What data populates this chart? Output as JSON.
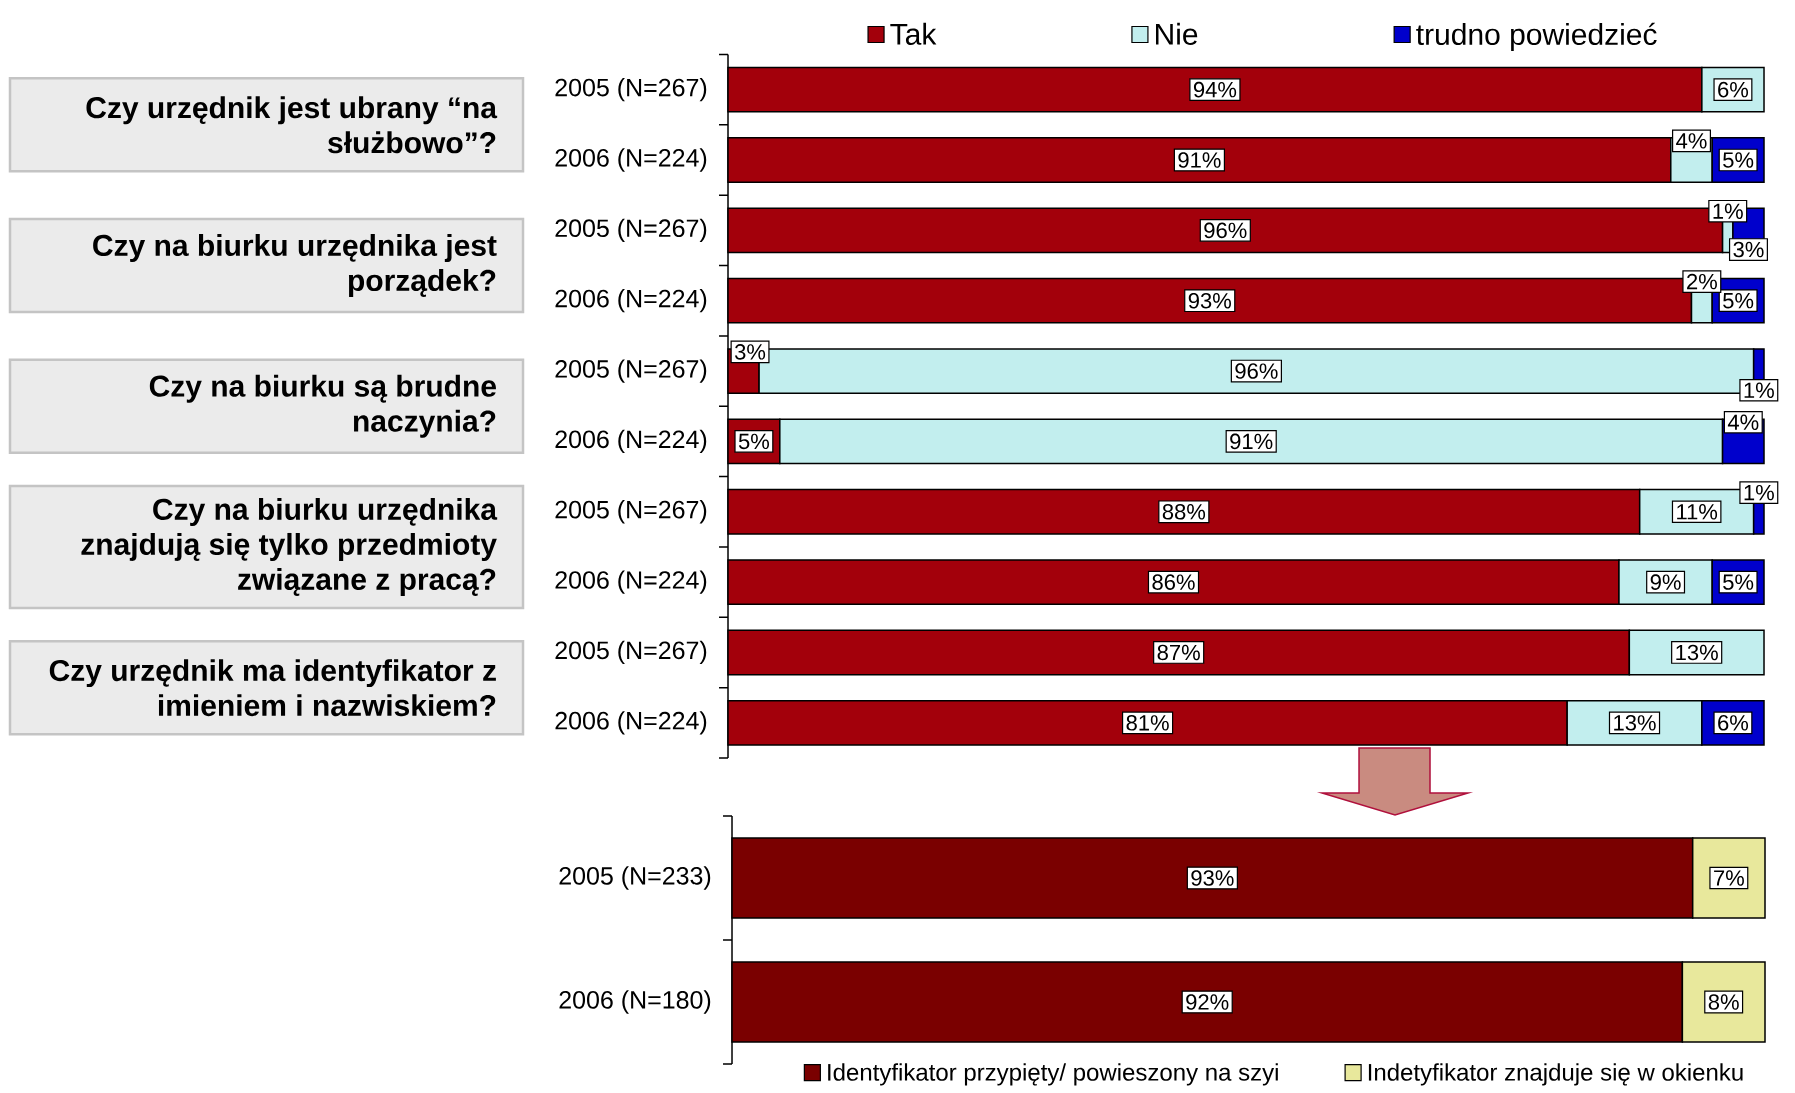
{
  "chart_data": [
    {
      "type": "bar",
      "orientation": "horizontal",
      "stacked": true,
      "legend": "top",
      "categories": [
        "2005 (N=267)",
        "2006 (N=224)",
        "2005 (N=267)",
        "2006 (N=224)",
        "2005 (N=267)",
        "2006 (N=224)",
        "2005 (N=267)",
        "2006 (N=224)",
        "2005 (N=267)",
        "2006 (N=224)"
      ],
      "series": [
        {
          "name": "Tak",
          "color": "#a3000b",
          "values": [
            94,
            91,
            96,
            93,
            3,
            5,
            88,
            86,
            87,
            81
          ],
          "value_labels": [
            "94%",
            "91%",
            "96%",
            "93%",
            "3%",
            "5%",
            "88%",
            "86%",
            "87%",
            "81%"
          ]
        },
        {
          "name": "Nie",
          "color": "#c2eeee",
          "values": [
            6,
            4,
            1,
            2,
            96,
            91,
            11,
            9,
            13,
            13
          ],
          "value_labels": [
            "6%",
            "4%",
            "1%",
            "2%",
            "96%",
            "91%",
            "11%",
            "9%",
            "13%",
            "13%"
          ]
        },
        {
          "name": "trudno powiedzieć",
          "color": "#0000cc",
          "values": [
            null,
            5,
            3,
            5,
            1,
            4,
            1,
            5,
            null,
            6
          ],
          "value_labels": [
            null,
            "5%",
            "3%",
            "5%",
            "1%",
            "4%",
            "1%",
            "5%",
            null,
            "6%"
          ]
        }
      ],
      "annotations": [
        "Czy urzędnik jest ubrany “na służbowo”?",
        "Czy na biurku urzędnika jest porządek?",
        "Czy na biurku są brudne naczynia?",
        "Czy na biurku urzędnika znajdują się tylko przedmioty związane z pracą?",
        "Czy urzędnik ma identyfikator z imieniem i nazwiskiem?"
      ]
    },
    {
      "type": "bar",
      "orientation": "horizontal",
      "stacked": true,
      "legend": "bottom",
      "categories": [
        "2005 (N=233)",
        "2006 (N=180)"
      ],
      "series": [
        {
          "name": "Identyfikator przypięty/ powieszony na szyi",
          "color": "#7a0000",
          "values": [
            93,
            92
          ],
          "value_labels": [
            "93%",
            "92%"
          ]
        },
        {
          "name": "Indetyfikator znajduje się w okienku",
          "color": "#e8e89c",
          "values": [
            7,
            8
          ],
          "value_labels": [
            "7%",
            "8%"
          ]
        }
      ]
    }
  ]
}
